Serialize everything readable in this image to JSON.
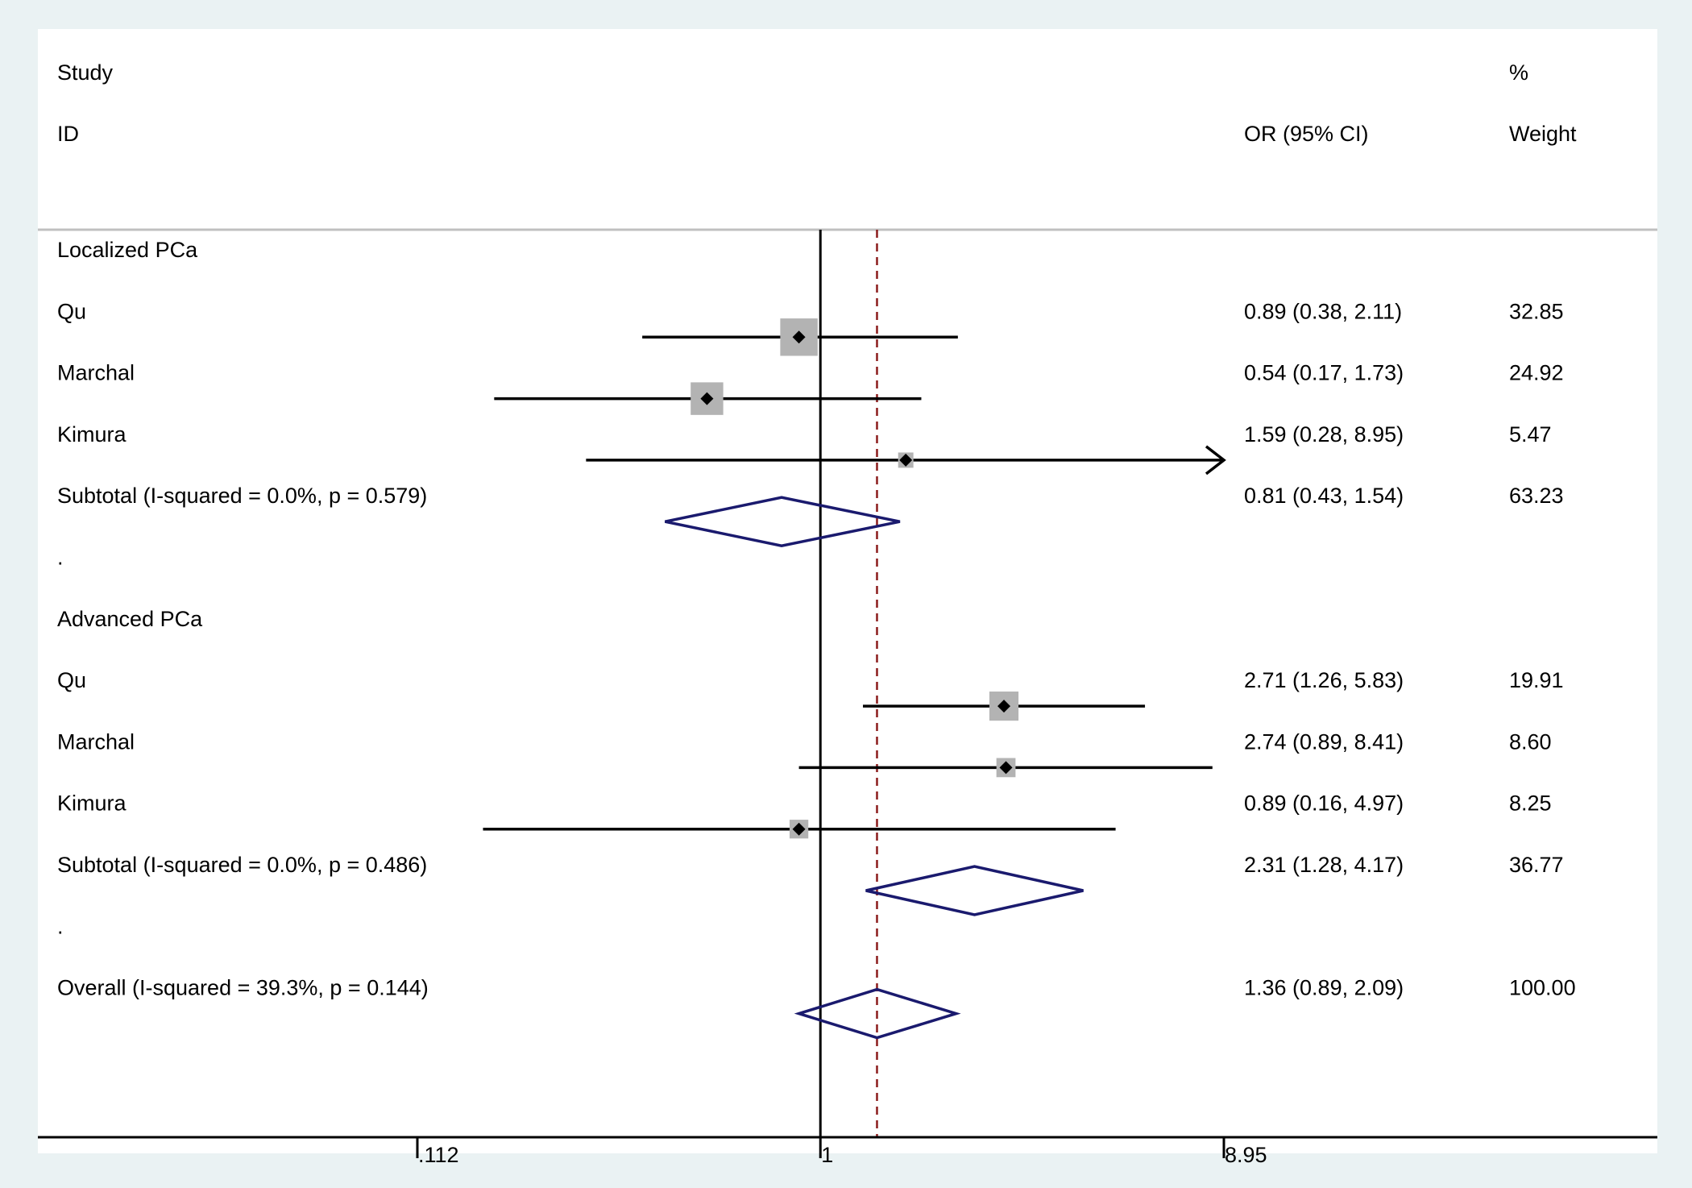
{
  "header": {
    "study": "Study",
    "id": "ID",
    "percent": "%",
    "weight": "Weight",
    "or_ci": "OR (95% CI)"
  },
  "colors": {
    "background": "#eaf2f3",
    "panel": "#ffffff",
    "box": "#b3b3b3",
    "diamond": "#1a1a6e",
    "overall_line": "#8b1c1c"
  },
  "chart_data": {
    "type": "forest",
    "scale": "log",
    "null_value": 1,
    "xlim": [
      0.112,
      8.95
    ],
    "x_ticks": [
      {
        "value": 0.112,
        "label": ".112"
      },
      {
        "value": 1,
        "label": "1"
      },
      {
        "value": 8.95,
        "label": "8.95"
      }
    ],
    "overall_estimate": 1.36,
    "rows": [
      {
        "kind": "group",
        "label": "Localized PCa"
      },
      {
        "kind": "study",
        "label": "Qu",
        "or": 0.89,
        "lo": 0.38,
        "hi": 2.11,
        "ci_text": "0.89 (0.38, 2.11)",
        "weight_text": "32.85",
        "weight": 32.85
      },
      {
        "kind": "study",
        "label": "Marchal",
        "or": 0.54,
        "lo": 0.17,
        "hi": 1.73,
        "ci_text": "0.54 (0.17, 1.73)",
        "weight_text": "24.92",
        "weight": 24.92
      },
      {
        "kind": "study",
        "label": "Kimura",
        "or": 1.59,
        "lo": 0.28,
        "hi": 8.95,
        "ci_text": "1.59 (0.28, 8.95)",
        "weight_text": "5.47",
        "weight": 5.47,
        "arrow_right": true
      },
      {
        "kind": "subtotal",
        "label": "Subtotal  (I-squared = 0.0%, p = 0.579)",
        "or": 0.81,
        "lo": 0.43,
        "hi": 1.54,
        "ci_text": "0.81 (0.43, 1.54)",
        "weight_text": "63.23"
      },
      {
        "kind": "spacer",
        "label": "."
      },
      {
        "kind": "group",
        "label": "Advanced PCa"
      },
      {
        "kind": "study",
        "label": "Qu",
        "or": 2.71,
        "lo": 1.26,
        "hi": 5.83,
        "ci_text": "2.71 (1.26, 5.83)",
        "weight_text": "19.91",
        "weight": 19.91
      },
      {
        "kind": "study",
        "label": "Marchal",
        "or": 2.74,
        "lo": 0.89,
        "hi": 8.41,
        "ci_text": "2.74 (0.89, 8.41)",
        "weight_text": "8.60",
        "weight": 8.6
      },
      {
        "kind": "study",
        "label": "Kimura",
        "or": 0.89,
        "lo": 0.16,
        "hi": 4.97,
        "ci_text": "0.89 (0.16, 4.97)",
        "weight_text": "8.25",
        "weight": 8.25
      },
      {
        "kind": "subtotal",
        "label": "Subtotal  (I-squared = 0.0%, p = 0.486)",
        "or": 2.31,
        "lo": 1.28,
        "hi": 4.17,
        "ci_text": "2.31 (1.28, 4.17)",
        "weight_text": "36.77"
      },
      {
        "kind": "spacer",
        "label": "."
      },
      {
        "kind": "overall",
        "label": "Overall  (I-squared = 39.3%, p = 0.144)",
        "or": 1.36,
        "lo": 0.89,
        "hi": 2.09,
        "ci_text": "1.36 (0.89, 2.09)",
        "weight_text": "100.00"
      }
    ]
  }
}
